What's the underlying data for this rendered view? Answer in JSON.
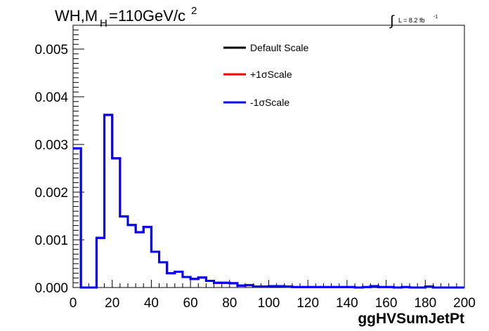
{
  "header": {
    "title_main": "WH,M",
    "title_sub": "H",
    "title_rest": "=110GeV/c",
    "title_sup": "2",
    "lumi_symbol": "∫",
    "lumi_text": "L = 8.2 fb",
    "lumi_sup": "-1"
  },
  "chart_data": {
    "type": "line",
    "xlabel": "ggHVSumJetPt",
    "ylabel": "",
    "xlim": [
      0,
      200
    ],
    "ylim": [
      0,
      0.0055
    ],
    "x_ticks": [
      "0",
      "20",
      "40",
      "60",
      "80",
      "100",
      "120",
      "140",
      "160",
      "180",
      "200"
    ],
    "y_ticks": [
      "0.000",
      "0.001",
      "0.002",
      "0.003",
      "0.004",
      "0.005"
    ],
    "bin_edges": [
      0,
      4,
      8,
      12,
      16,
      20,
      24,
      28,
      32,
      36,
      40,
      44,
      48,
      52,
      56,
      60,
      64,
      68,
      72,
      76,
      80,
      84,
      88,
      92,
      96,
      100,
      104,
      108,
      112,
      116,
      120,
      124,
      128,
      132,
      136,
      140,
      144,
      148,
      152,
      156,
      160,
      164,
      168,
      172,
      176,
      180,
      184,
      188,
      192,
      196,
      200
    ],
    "legend_position": "top-center",
    "grid": false,
    "series": [
      {
        "name": "Default Scale",
        "color": "#000000",
        "values": [
          0.00292,
          0.0,
          0.0,
          0.00104,
          0.00362,
          0.00271,
          0.00149,
          0.00131,
          0.00116,
          0.00127,
          0.00075,
          0.00053,
          0.0003,
          0.00033,
          0.00022,
          0.00018,
          0.00021,
          0.00014,
          0.0001,
          0.0001,
          9e-05,
          4e-05,
          5e-05,
          2e-05,
          2e-05,
          3e-05,
          3e-05,
          2e-05,
          1e-05,
          1e-05,
          1e-05,
          1e-05,
          1e-05,
          1e-05,
          1e-05,
          1e-05,
          0.0,
          1e-05,
          3e-05,
          1e-05,
          1e-05,
          0.0,
          1e-05,
          0.0,
          0.0,
          2e-05,
          0.0,
          0.0,
          0.0,
          0.0
        ]
      },
      {
        "name": "+1σScale",
        "color": "#ff0000",
        "values": [
          0.00292,
          0.0,
          0.0,
          0.00104,
          0.00362,
          0.00271,
          0.00149,
          0.00131,
          0.00116,
          0.00127,
          0.00075,
          0.00053,
          0.0003,
          0.00033,
          0.00022,
          0.00018,
          0.00021,
          0.00014,
          0.0001,
          0.0001,
          9e-05,
          4e-05,
          5e-05,
          2e-05,
          2e-05,
          3e-05,
          3e-05,
          2e-05,
          1e-05,
          1e-05,
          1e-05,
          1e-05,
          1e-05,
          1e-05,
          1e-05,
          1e-05,
          0.0,
          1e-05,
          3e-05,
          1e-05,
          1e-05,
          0.0,
          1e-05,
          0.0,
          0.0,
          2e-05,
          0.0,
          0.0,
          0.0,
          0.0
        ]
      },
      {
        "name": "-1σScale",
        "color": "#0000ff",
        "values": [
          0.00292,
          0.0,
          0.0,
          0.00104,
          0.00362,
          0.00271,
          0.00149,
          0.00131,
          0.00116,
          0.00127,
          0.00075,
          0.00053,
          0.0003,
          0.00033,
          0.00022,
          0.00018,
          0.00021,
          0.00014,
          0.0001,
          0.0001,
          9e-05,
          4e-05,
          5e-05,
          2e-05,
          2e-05,
          3e-05,
          3e-05,
          2e-05,
          1e-05,
          1e-05,
          1e-05,
          1e-05,
          1e-05,
          1e-05,
          1e-05,
          1e-05,
          0.0,
          1e-05,
          3e-05,
          1e-05,
          1e-05,
          0.0,
          1e-05,
          0.0,
          0.0,
          2e-05,
          0.0,
          0.0,
          0.0,
          0.0
        ]
      }
    ]
  }
}
